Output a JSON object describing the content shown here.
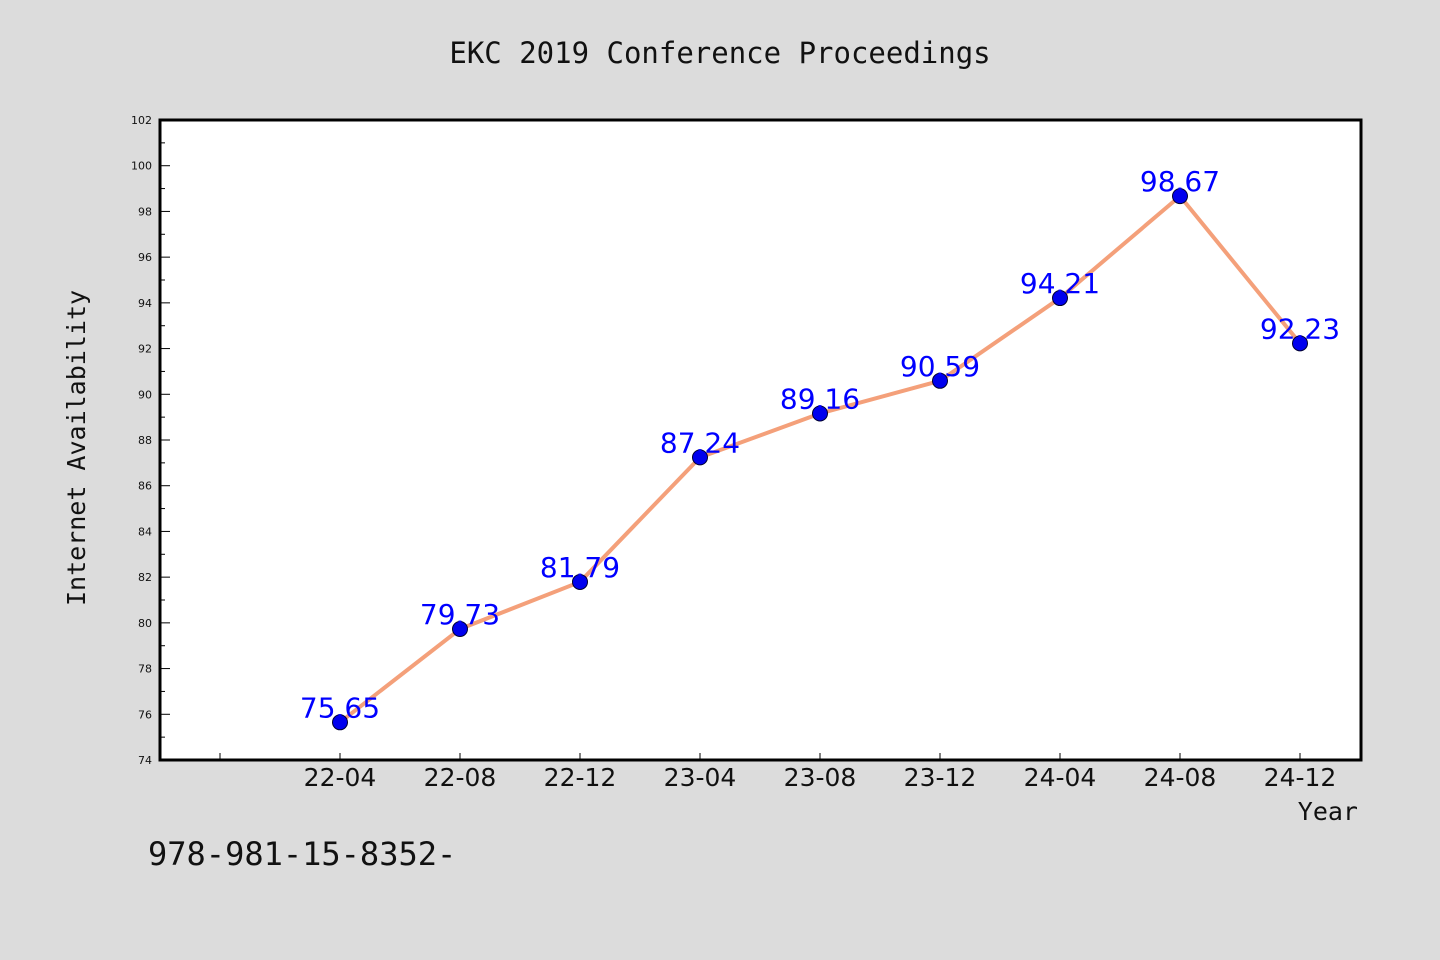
{
  "colors": {
    "background": "#dcdcdc",
    "plot_area": "#ffffff",
    "line": "#f4a07a",
    "marker": "#0000ee",
    "data_label": "#0000ff",
    "text": "#111111"
  },
  "footer_text": "978-981-15-8352-",
  "chart_data": {
    "type": "line",
    "title": "EKC 2019 Conference Proceedings",
    "xlabel": "Year",
    "ylabel": "Internet Availability",
    "categories": [
      "22-04",
      "22-08",
      "22-12",
      "23-04",
      "23-08",
      "23-12",
      "24-04",
      "24-08",
      "24-12"
    ],
    "series": [
      {
        "values": [
          75.65,
          79.73,
          81.79,
          87.24,
          89.16,
          90.59,
          94.21,
          98.67,
          92.23
        ],
        "labels": [
          "75.65",
          "79.73",
          "81.79",
          "87.24",
          "89.16",
          "90.59",
          "94.21",
          "98.67",
          "92.23"
        ]
      }
    ],
    "ylim": [
      74,
      102
    ],
    "yticks": [
      74,
      76,
      78,
      80,
      82,
      84,
      86,
      88,
      90,
      92,
      94,
      96,
      98,
      100,
      102
    ],
    "grid": false,
    "legend": "none"
  }
}
